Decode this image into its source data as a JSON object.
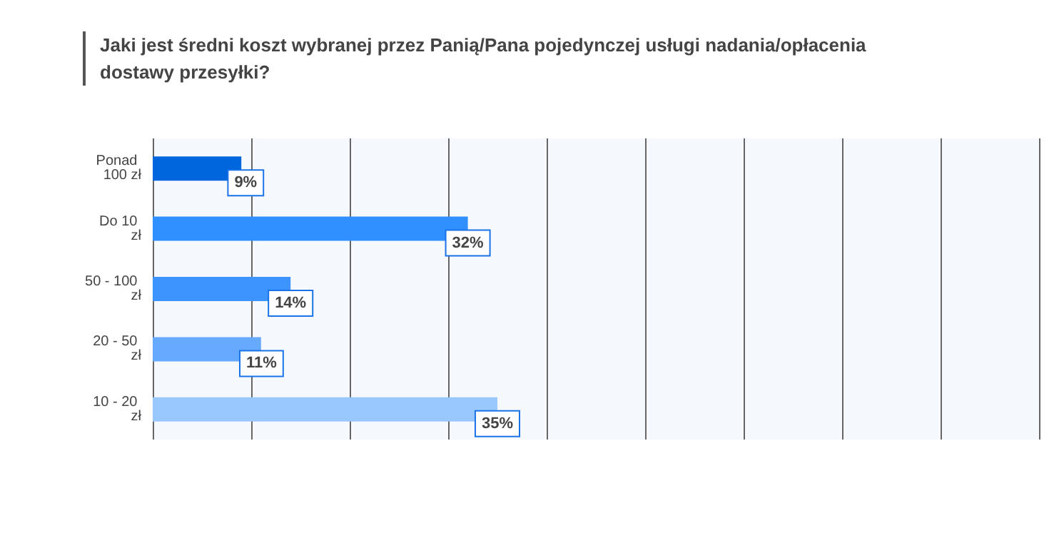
{
  "chart_data": {
    "type": "bar",
    "orientation": "horizontal",
    "title": "Jaki jest średni koszt wybranej przez Panią/Pana pojedynczej usługi nadania/opłacenia dostawy przesyłki?",
    "categories": [
      "Ponad 100 zł",
      "Do 10 zł",
      "50 - 100 zł",
      "20 - 50 zł",
      "10 - 20 zł"
    ],
    "values": [
      9,
      32,
      14,
      11,
      35
    ],
    "value_labels": [
      "9%",
      "32%",
      "14%",
      "11%",
      "35%"
    ],
    "colors": [
      "#0066dd",
      "#3090ff",
      "#3d94ff",
      "#66aaff",
      "#99c8ff"
    ],
    "xlim": [
      0,
      90
    ],
    "xticks": [
      {
        "value": 0,
        "label": null
      },
      {
        "value": 10,
        "label": null
      },
      {
        "value": 20,
        "label": null
      },
      {
        "value": 30,
        "label": null
      },
      {
        "value": 40,
        "label": null
      },
      {
        "value": 50,
        "label": null
      },
      {
        "value": 60,
        "label": null
      },
      {
        "value": 70,
        "label": null
      },
      {
        "value": 80,
        "label": null
      },
      {
        "value": 90,
        "label": null
      }
    ],
    "grid": "x",
    "tick_labels": "y"
  }
}
